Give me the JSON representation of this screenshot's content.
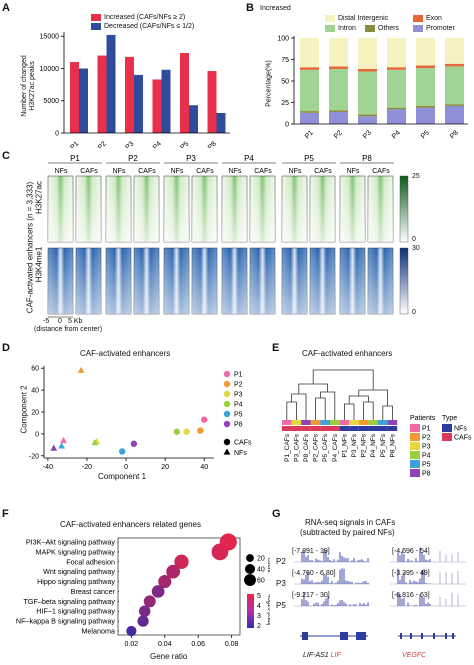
{
  "panelA": {
    "letter": "A",
    "legend": [
      "Increased (CAFs/NFs ≥ 2)",
      "Decreased (CAFs/NFs ≤ 1/2)"
    ],
    "ylabel": [
      "Number of changed",
      "H3K27ac peaks"
    ],
    "colors": {
      "increased": "#e8304a",
      "decreased": "#2e4b9c"
    }
  },
  "panelB": {
    "letter": "B",
    "title": "Increased",
    "legend": [
      "Distal Intergenic",
      "Exon",
      "Intron",
      "Others",
      "Promoter"
    ],
    "ylabel": "Percentage(%)",
    "colors": {
      "distal": "#f6f2c0",
      "exon": "#e8673a",
      "intron": "#9fd492",
      "others": "#8c8a3c",
      "promoter": "#9090d8"
    }
  },
  "panelC": {
    "letter": "C",
    "samples": [
      "P1",
      "P2",
      "P3",
      "P4",
      "P5",
      "P8"
    ],
    "sub": [
      "NFs",
      "CAFs"
    ],
    "ylabel_outer": "CAF-activated enhancers (n = 3,333)",
    "row1": "H3K27ac",
    "row2": "H3K4me1",
    "x_ticks": [
      "-5",
      "0",
      "5 Kb"
    ],
    "x_note": "(distance from center)",
    "scale1": [
      "25",
      "0"
    ],
    "scale2": [
      "30",
      "0"
    ]
  },
  "panelD": {
    "letter": "D",
    "title": "CAF-activated enhancers",
    "xlabel": "Component 1",
    "ylabel": "Component 2",
    "legend_patients": [
      "P1",
      "P2",
      "P3",
      "P4",
      "P5",
      "P8"
    ],
    "legend_types": [
      "CAFs",
      "NFs"
    ],
    "patient_colors": [
      "#f06aa8",
      "#f39a35",
      "#e4d83a",
      "#9bcf3c",
      "#3ba3d8",
      "#9044b4"
    ]
  },
  "panelE": {
    "letter": "E",
    "title": "CAF-activated enhancers",
    "leaves": [
      "P1_CAFs",
      "P3_CAFs",
      "P8_CAFs",
      "P2_CAFs",
      "P5_CAFs",
      "P4_CAFs",
      "P1_NFs",
      "P3_NFs",
      "P2_NFs",
      "P4_NFs",
      "P5_NFs",
      "P8_NFs"
    ],
    "legend_patients_title": "Patients",
    "legend_type_title": "Type",
    "legend_patients": [
      "P1",
      "P2",
      "P3",
      "P4",
      "P5",
      "P8"
    ],
    "legend_types": [
      "NFs",
      "CAFs"
    ],
    "type_colors": [
      "#2e3a9c",
      "#d93a5a"
    ]
  },
  "panelF": {
    "letter": "F",
    "title": "CAF-activated enhancers related genes",
    "xlabel": "Gene ratio",
    "size_title": "count",
    "size_values": [
      "20",
      "40",
      "60"
    ],
    "color_title": "-log10 p.adj",
    "color_values": [
      "5",
      "4",
      "3",
      "2"
    ]
  },
  "panelG": {
    "letter": "G",
    "title1": "RNA-seq signals in CAFs",
    "title2": "(subtracted by paired NFs)",
    "rows": [
      "P2",
      "P3",
      "P5"
    ],
    "ranges_left": [
      "[-7.891 - 19]",
      "[-4.760 - 6.80]",
      "[-9.217 - 30]"
    ],
    "ranges_right": [
      "[-4.696 - 54]",
      "[-3.395 - 49]",
      "[-6.816 - 63]"
    ],
    "gene_left_a": "LIF-AS1",
    "gene_left_b": "LIF",
    "gene_right": "VEGFC"
  },
  "chart_data": [
    {
      "type": "bar",
      "panel": "A",
      "categories": [
        "P1",
        "P2",
        "P3",
        "P4",
        "P5",
        "P8"
      ],
      "series": [
        {
          "name": "Increased (CAFs/NFs ≥ 2)",
          "values": [
            11000,
            12000,
            11800,
            8300,
            12400,
            9600
          ]
        },
        {
          "name": "Decreased (CAFs/NFs ≤ 1/2)",
          "values": [
            10000,
            15200,
            9000,
            9800,
            4300,
            3100
          ]
        }
      ],
      "yticks": [
        0,
        5000,
        10000,
        15000
      ],
      "ylim": [
        0,
        15500
      ],
      "ylabel": "Number of changed H3K27ac peaks"
    },
    {
      "type": "bar",
      "panel": "B",
      "stacked": true,
      "categories": [
        "P1",
        "P2",
        "P3",
        "P4",
        "P5",
        "P8"
      ],
      "series": [
        {
          "name": "Promoter",
          "values": [
            13,
            14,
            9,
            17,
            19,
            21
          ]
        },
        {
          "name": "Others",
          "values": [
            2,
            2,
            2,
            2,
            2,
            2
          ]
        },
        {
          "name": "Intron",
          "values": [
            48,
            48,
            50,
            44,
            44,
            44
          ]
        },
        {
          "name": "Exon",
          "values": [
            3,
            3,
            3,
            3,
            3,
            3
          ]
        },
        {
          "name": "Distal Intergenic",
          "values": [
            34,
            33,
            36,
            34,
            32,
            30
          ]
        }
      ],
      "yticks": [
        0,
        25,
        50,
        75,
        100
      ],
      "ylabel": "Percentage(%)"
    },
    {
      "type": "scatter",
      "panel": "D",
      "xlabel": "Component 1",
      "ylabel": "Component 2",
      "xlim": [
        -42,
        45
      ],
      "ylim": [
        -22,
        62
      ],
      "xticks": [
        -40,
        -20,
        0,
        20,
        40
      ],
      "yticks": [
        -20,
        0,
        20,
        40,
        60
      ],
      "points": [
        {
          "patient": "P1",
          "type": "CAFs",
          "x": 40,
          "y": 13
        },
        {
          "patient": "P2",
          "type": "CAFs",
          "x": 38,
          "y": 3
        },
        {
          "patient": "P3",
          "type": "CAFs",
          "x": 31,
          "y": 2
        },
        {
          "patient": "P4",
          "type": "CAFs",
          "x": 26,
          "y": 2
        },
        {
          "patient": "P8",
          "type": "CAFs",
          "x": 4,
          "y": -9
        },
        {
          "patient": "P5",
          "type": "CAFs",
          "x": -2,
          "y": -16
        },
        {
          "patient": "P2",
          "type": "NFs",
          "x": -23,
          "y": 58
        },
        {
          "patient": "P1",
          "type": "NFs",
          "x": -32,
          "y": -6
        },
        {
          "patient": "P3",
          "type": "NFs",
          "x": -15,
          "y": -7
        },
        {
          "patient": "P4",
          "type": "NFs",
          "x": -16,
          "y": -8
        },
        {
          "patient": "P5",
          "type": "NFs",
          "x": -33,
          "y": -11
        },
        {
          "patient": "P8",
          "type": "NFs",
          "x": -37,
          "y": -13
        }
      ]
    },
    {
      "type": "scatter",
      "panel": "F",
      "xlabel": "Gene ratio",
      "xticks": [
        0.02,
        0.04,
        0.06,
        0.08
      ],
      "xlim": [
        0.012,
        0.085
      ],
      "terms": [
        {
          "name": "PI3K–Akt signaling pathway",
          "ratio": 0.078,
          "count": 62,
          "padj": 5.2
        },
        {
          "name": "MAPK signaling pathway",
          "ratio": 0.073,
          "count": 58,
          "padj": 5.0
        },
        {
          "name": "Focal adhesion",
          "ratio": 0.05,
          "count": 40,
          "padj": 4.8
        },
        {
          "name": "Wnt signaling pathway",
          "ratio": 0.045,
          "count": 36,
          "padj": 4.2
        },
        {
          "name": "Hippo signaling pathway",
          "ratio": 0.04,
          "count": 32,
          "padj": 4.0
        },
        {
          "name": "Breast cancer",
          "ratio": 0.036,
          "count": 29,
          "padj": 3.3
        },
        {
          "name": "TGF–beta signaling pathway",
          "ratio": 0.031,
          "count": 25,
          "padj": 3.7
        },
        {
          "name": "HIF–1 signaling pathway",
          "ratio": 0.028,
          "count": 22,
          "padj": 3.2
        },
        {
          "name": "NF–kappa B signaling pathway",
          "ratio": 0.027,
          "count": 21,
          "padj": 2.8
        },
        {
          "name": "Melanoma",
          "ratio": 0.02,
          "count": 16,
          "padj": 2.2
        }
      ]
    }
  ]
}
